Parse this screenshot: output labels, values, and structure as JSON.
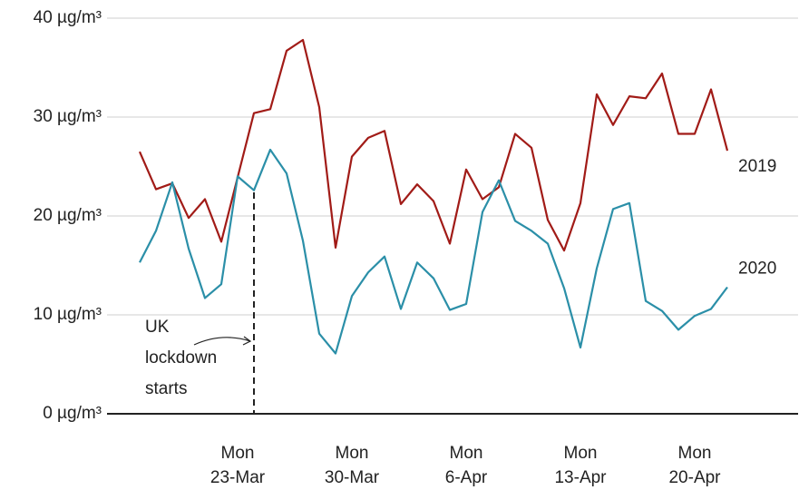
{
  "chart_data": {
    "type": "line",
    "x": [
      "17-Mar",
      "18-Mar",
      "19-Mar",
      "20-Mar",
      "21-Mar",
      "22-Mar",
      "23-Mar",
      "24-Mar",
      "25-Mar",
      "26-Mar",
      "27-Mar",
      "28-Mar",
      "29-Mar",
      "30-Mar",
      "31-Mar",
      "1-Apr",
      "2-Apr",
      "3-Apr",
      "4-Apr",
      "5-Apr",
      "6-Apr",
      "7-Apr",
      "8-Apr",
      "9-Apr",
      "10-Apr",
      "11-Apr",
      "12-Apr",
      "13-Apr",
      "14-Apr",
      "15-Apr",
      "16-Apr",
      "17-Apr",
      "18-Apr",
      "19-Apr",
      "20-Apr",
      "21-Apr",
      "22-Apr"
    ],
    "series": [
      {
        "name": "2019",
        "color": "#a11b17",
        "values": [
          26.5,
          22.7,
          23.3,
          19.8,
          21.7,
          17.4,
          23.9,
          30.4,
          30.8,
          36.7,
          37.8,
          31.0,
          16.8,
          26.0,
          27.9,
          28.6,
          21.2,
          23.2,
          21.5,
          17.2,
          24.7,
          21.7,
          22.9,
          28.3,
          26.9,
          19.6,
          16.5,
          21.3,
          32.3,
          29.2,
          32.1,
          31.9,
          34.4,
          28.3,
          28.3,
          32.8,
          26.6
        ]
      },
      {
        "name": "2020",
        "color": "#2b8fa8",
        "values": [
          15.3,
          18.5,
          23.4,
          16.7,
          11.7,
          13.1,
          24.0,
          22.6,
          26.7,
          24.3,
          17.5,
          8.1,
          6.1,
          11.9,
          14.3,
          15.9,
          10.6,
          15.3,
          13.7,
          10.5,
          11.1,
          20.4,
          23.6,
          19.5,
          18.5,
          17.2,
          12.7,
          6.7,
          14.7,
          20.7,
          21.3,
          11.4,
          10.4,
          8.5,
          9.9,
          10.6,
          12.8
        ]
      }
    ],
    "ylim": [
      0,
      40
    ],
    "yticks": [
      {
        "value": 0,
        "label": "0 µg/m³"
      },
      {
        "value": 10,
        "label": "10 µg/m³"
      },
      {
        "value": 20,
        "label": "20 µg/m³"
      },
      {
        "value": 30,
        "label": "30 µg/m³"
      },
      {
        "value": 40,
        "label": "40 µg/m³"
      }
    ],
    "xticks": [
      {
        "value": "23-Mar",
        "label": "Mon\n23-Mar"
      },
      {
        "value": "30-Mar",
        "label": "Mon\n30-Mar"
      },
      {
        "value": "6-Apr",
        "label": "Mon\n6-Apr"
      },
      {
        "value": "13-Apr",
        "label": "Mon\n13-Apr"
      },
      {
        "value": "20-Apr",
        "label": "Mon\n20-Apr"
      }
    ],
    "grid": true,
    "annotation": {
      "text": "UK\nlockdown\nstarts",
      "x": "24-Mar"
    }
  }
}
